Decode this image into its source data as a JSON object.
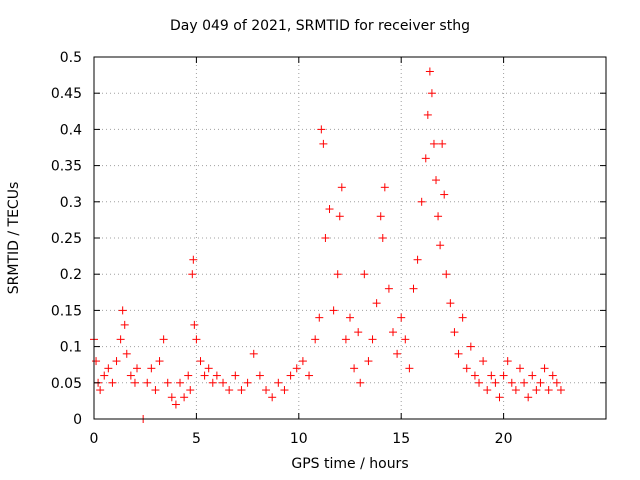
{
  "chart_data": {
    "type": "scatter",
    "title": "Day 049 of 2021, SRMTID for receiver sthg",
    "xlabel": "GPS time / hours",
    "ylabel": "SRMTID / TECUs",
    "xlim": [
      0,
      25
    ],
    "ylim": [
      0,
      0.5
    ],
    "xticks": [
      "0",
      "5",
      "10",
      "15",
      "20"
    ],
    "yticks": [
      "0",
      "0.05",
      "0.1",
      "0.15",
      "0.2",
      "0.25",
      "0.3",
      "0.35",
      "0.4",
      "0.45",
      "0.5"
    ],
    "grid": true,
    "marker": "+",
    "series": [
      {
        "name": "sthg",
        "color": "#ff0000",
        "points": [
          [
            0.0,
            0.11
          ],
          [
            0.1,
            0.08
          ],
          [
            0.2,
            0.05
          ],
          [
            0.3,
            0.04
          ],
          [
            0.5,
            0.06
          ],
          [
            0.7,
            0.07
          ],
          [
            0.9,
            0.05
          ],
          [
            1.1,
            0.08
          ],
          [
            1.3,
            0.11
          ],
          [
            1.4,
            0.15
          ],
          [
            1.5,
            0.13
          ],
          [
            1.6,
            0.09
          ],
          [
            1.8,
            0.06
          ],
          [
            2.0,
            0.05
          ],
          [
            2.1,
            0.07
          ],
          [
            2.4,
            0.0
          ],
          [
            2.6,
            0.05
          ],
          [
            2.8,
            0.07
          ],
          [
            3.0,
            0.04
          ],
          [
            3.2,
            0.08
          ],
          [
            3.4,
            0.11
          ],
          [
            3.6,
            0.05
          ],
          [
            3.8,
            0.03
          ],
          [
            4.0,
            0.02
          ],
          [
            4.2,
            0.05
          ],
          [
            4.4,
            0.03
          ],
          [
            4.6,
            0.06
          ],
          [
            4.7,
            0.04
          ],
          [
            4.8,
            0.2
          ],
          [
            4.85,
            0.22
          ],
          [
            4.9,
            0.13
          ],
          [
            5.0,
            0.11
          ],
          [
            5.2,
            0.08
          ],
          [
            5.4,
            0.06
          ],
          [
            5.6,
            0.07
          ],
          [
            5.8,
            0.05
          ],
          [
            6.0,
            0.06
          ],
          [
            6.3,
            0.05
          ],
          [
            6.6,
            0.04
          ],
          [
            6.9,
            0.06
          ],
          [
            7.2,
            0.04
          ],
          [
            7.5,
            0.05
          ],
          [
            7.8,
            0.09
          ],
          [
            8.1,
            0.06
          ],
          [
            8.4,
            0.04
          ],
          [
            8.7,
            0.03
          ],
          [
            9.0,
            0.05
          ],
          [
            9.3,
            0.04
          ],
          [
            9.6,
            0.06
          ],
          [
            9.9,
            0.07
          ],
          [
            10.2,
            0.08
          ],
          [
            10.5,
            0.06
          ],
          [
            10.8,
            0.11
          ],
          [
            11.0,
            0.14
          ],
          [
            11.1,
            0.4
          ],
          [
            11.2,
            0.38
          ],
          [
            11.3,
            0.25
          ],
          [
            11.5,
            0.29
          ],
          [
            11.7,
            0.15
          ],
          [
            11.9,
            0.2
          ],
          [
            12.0,
            0.28
          ],
          [
            12.1,
            0.32
          ],
          [
            12.3,
            0.11
          ],
          [
            12.5,
            0.14
          ],
          [
            12.7,
            0.07
          ],
          [
            12.9,
            0.12
          ],
          [
            13.0,
            0.05
          ],
          [
            13.2,
            0.2
          ],
          [
            13.4,
            0.08
          ],
          [
            13.6,
            0.11
          ],
          [
            13.8,
            0.16
          ],
          [
            14.0,
            0.28
          ],
          [
            14.1,
            0.25
          ],
          [
            14.2,
            0.32
          ],
          [
            14.4,
            0.18
          ],
          [
            14.6,
            0.12
          ],
          [
            14.8,
            0.09
          ],
          [
            15.0,
            0.14
          ],
          [
            15.2,
            0.11
          ],
          [
            15.4,
            0.07
          ],
          [
            15.6,
            0.18
          ],
          [
            15.8,
            0.22
          ],
          [
            16.0,
            0.3
          ],
          [
            16.2,
            0.36
          ],
          [
            16.3,
            0.42
          ],
          [
            16.4,
            0.48
          ],
          [
            16.5,
            0.45
          ],
          [
            16.6,
            0.38
          ],
          [
            16.7,
            0.33
          ],
          [
            16.8,
            0.28
          ],
          [
            16.9,
            0.24
          ],
          [
            17.0,
            0.38
          ],
          [
            17.1,
            0.31
          ],
          [
            17.2,
            0.2
          ],
          [
            17.4,
            0.16
          ],
          [
            17.6,
            0.12
          ],
          [
            17.8,
            0.09
          ],
          [
            18.0,
            0.14
          ],
          [
            18.2,
            0.07
          ],
          [
            18.4,
            0.1
          ],
          [
            18.6,
            0.06
          ],
          [
            18.8,
            0.05
          ],
          [
            19.0,
            0.08
          ],
          [
            19.2,
            0.04
          ],
          [
            19.4,
            0.06
          ],
          [
            19.6,
            0.05
          ],
          [
            19.8,
            0.03
          ],
          [
            20.0,
            0.06
          ],
          [
            20.2,
            0.08
          ],
          [
            20.4,
            0.05
          ],
          [
            20.6,
            0.04
          ],
          [
            20.8,
            0.07
          ],
          [
            21.0,
            0.05
          ],
          [
            21.2,
            0.03
          ],
          [
            21.4,
            0.06
          ],
          [
            21.6,
            0.04
          ],
          [
            21.8,
            0.05
          ],
          [
            22.0,
            0.07
          ],
          [
            22.2,
            0.04
          ],
          [
            22.4,
            0.06
          ],
          [
            22.6,
            0.05
          ],
          [
            22.8,
            0.04
          ]
        ]
      }
    ]
  }
}
